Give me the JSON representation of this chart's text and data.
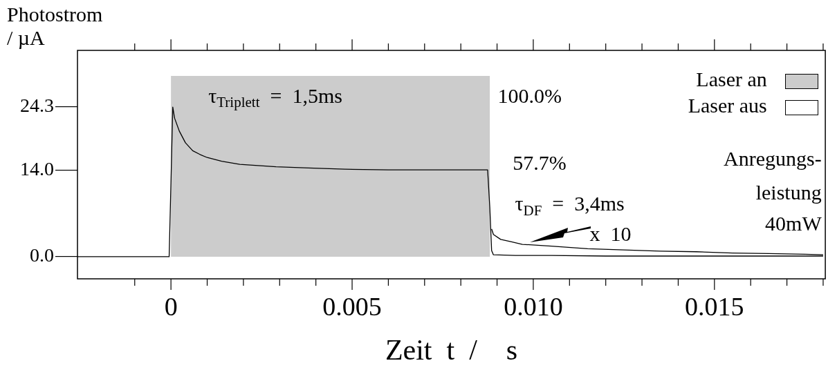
{
  "chart_data": {
    "type": "line",
    "xlabel": "Zeit  t  /    s",
    "ylabel": "Photostrom / µA",
    "xlim": [
      -0.00258,
      0.01806
    ],
    "ylim": [
      -3.6,
      33.5
    ],
    "xticks": [
      {
        "value": -0.001,
        "label": null
      },
      {
        "value": 0,
        "label": "0"
      },
      {
        "value": 0.001,
        "label": null
      },
      {
        "value": 0.002,
        "label": null
      },
      {
        "value": 0.003,
        "label": null
      },
      {
        "value": 0.004,
        "label": null
      },
      {
        "value": 0.005,
        "label": "0.005"
      },
      {
        "value": 0.006,
        "label": null
      },
      {
        "value": 0.007,
        "label": null
      },
      {
        "value": 0.008,
        "label": null
      },
      {
        "value": 0.009,
        "label": null
      },
      {
        "value": 0.01,
        "label": "0.010"
      },
      {
        "value": 0.011,
        "label": null
      },
      {
        "value": 0.012,
        "label": null
      },
      {
        "value": 0.013,
        "label": null
      },
      {
        "value": 0.014,
        "label": null
      },
      {
        "value": 0.015,
        "label": "0.015"
      },
      {
        "value": 0.016,
        "label": null
      },
      {
        "value": 0.017,
        "label": null
      },
      {
        "value": 0.018,
        "label": null
      }
    ],
    "yticks": [
      {
        "value": 0,
        "label": "0.0"
      },
      {
        "value": 14,
        "label": "14.0"
      },
      {
        "value": 24.3,
        "label": "24.3"
      }
    ],
    "grid": false,
    "marker": "none",
    "line_style": "solid",
    "bands": [
      {
        "axis": "x",
        "from": 0,
        "to": 0.0088,
        "color": "#cccccc"
      }
    ],
    "series": [
      {
        "color": "#000000",
        "x": [
          -0.00258,
          -0.001,
          -5e-05,
          0,
          5e-05,
          0.0001,
          0.00023,
          0.0004,
          0.0006,
          0.0008,
          0.001,
          0.0014,
          0.0019,
          0.0024,
          0.0029,
          0.0038,
          0.0048,
          0.006,
          0.007,
          0.008,
          0.00874,
          0.0088,
          0.00885,
          0.0089,
          0.0095,
          0.0105,
          0.012,
          0.014,
          0.016,
          0.018
        ],
        "values": [
          0,
          0,
          0,
          12,
          24.3,
          22.5,
          20.4,
          18.5,
          17.2,
          16.6,
          16.1,
          15.5,
          15,
          14.8,
          14.6,
          14.4,
          14.2,
          14.1,
          14.1,
          14.1,
          14.1,
          8,
          1,
          0.3,
          0.2,
          0.2,
          0.1,
          0.1,
          0.1,
          0.1
        ]
      },
      {
        "color": "#000000",
        "x": [
          0.00885,
          0.0089,
          0.0091,
          0.0094,
          0.0097,
          0.0105,
          0.0115,
          0.0125,
          0.0135,
          0.0145,
          0.0155,
          0.0165,
          0.0175,
          0.018
        ],
        "values": [
          4.5,
          3.6,
          2.8,
          2.4,
          2.0,
          1.7,
          1.3,
          1.1,
          0.9,
          0.8,
          0.6,
          0.5,
          0.4,
          0.3
        ]
      }
    ],
    "annotations": [
      "Laser an",
      "Laser aus",
      "100.0%",
      "57.7%",
      "τ$_{Triplett}$  =  1,5ms",
      "τ$_{DF}$  =  3,4ms",
      "x  10",
      "Anregungs-",
      "leistung",
      "40mW"
    ]
  }
}
